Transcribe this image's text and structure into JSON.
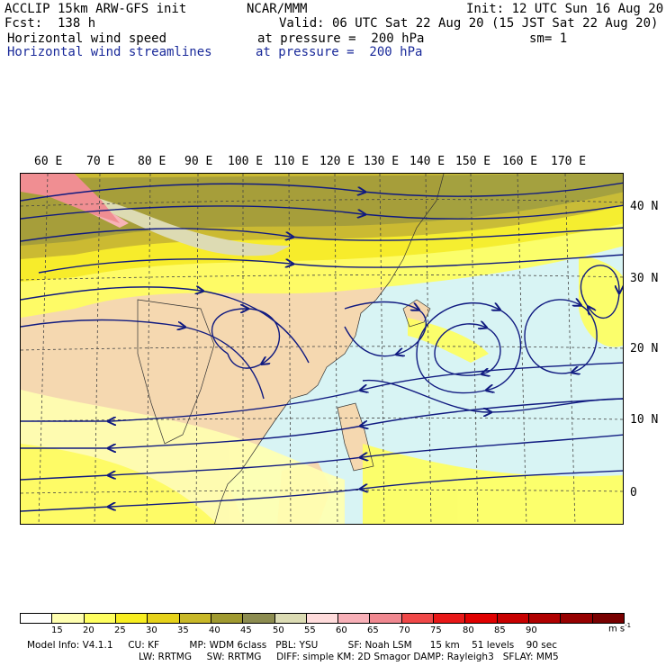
{
  "header": {
    "model": "ACCLIP 15km ARW-GFS init",
    "org": "NCAR/MMM",
    "init": "Init: 12 UTC Sun 16 Aug 20",
    "fcst": "Fcst:  138 h",
    "valid": "Valid: 06 UTC Sat 22 Aug 20 (15 JST Sat 22 Aug 20)",
    "field1_name": "Horizontal wind speed",
    "field1_level": "at pressure =  200 hPa",
    "sm": "sm= 1",
    "field2_name": "Horizontal wind streamlines",
    "field2_level": "at pressure =  200 hPa"
  },
  "map": {
    "lon_labels": [
      "60 E",
      "70 E",
      "80 E",
      "90 E",
      "100 E",
      "110 E",
      "120 E",
      "130 E",
      "140 E",
      "150 E",
      "160 E",
      "170 E"
    ],
    "lat_labels": [
      "40 N",
      "30 N",
      "20 N",
      "10 N",
      "0"
    ],
    "colors": {
      "ocean": "#d8f4f4",
      "land": "#f5d8b0",
      "streamline": "#101a80",
      "grid": "#444444"
    }
  },
  "colorbar": {
    "ticks": [
      "15",
      "20",
      "25",
      "30",
      "35",
      "40",
      "45",
      "50",
      "55",
      "60",
      "65",
      "70",
      "75",
      "80",
      "85",
      "90"
    ],
    "units": "m s",
    "units_exp": "-1",
    "colors": [
      "#ffffff",
      "#ffffb0",
      "#ffff60",
      "#f8ee20",
      "#e6d21a",
      "#c8b828",
      "#a09a30",
      "#8c8c50",
      "#dcdcb4",
      "#ffdcdc",
      "#f8b0b8",
      "#f08890",
      "#f04848",
      "#e81818",
      "#e00000",
      "#c80000",
      "#b00000",
      "#960000",
      "#780000"
    ]
  },
  "footer": {
    "line1": "Model Info: V4.1.1     CU: KF          MP: WDM 6class   PBL: YSU          SF: Noah LSM      15 km    51 levels    90 sec",
    "line2": "LW: RRTMG     SW: RRTMG     DIFF: simple KM: 2D Smagor DAMP: Rayleigh3   SFLAY: MM5"
  }
}
